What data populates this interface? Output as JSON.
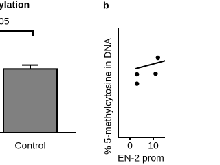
{
  "chart_data": [
    {
      "type": "bar",
      "title": "ylation",
      "annotation": "05",
      "categories": [
        "Control"
      ],
      "values": [
        48
      ],
      "errors": [
        3
      ],
      "color": "#808080",
      "ylim": [
        0,
        100
      ]
    },
    {
      "type": "scatter",
      "panel": "b",
      "ylabel": "% 5-methylcytosine in DNA",
      "xlabel": "EN-2 prom",
      "x": [
        3,
        3,
        12,
        11
      ],
      "values": [
        5.75,
        4.9,
        7.25,
        5.8
      ],
      "color": "#000000",
      "trend": {
        "x": [
          2.4,
          15.3
        ],
        "values": [
          6.25,
          7.0
        ]
      },
      "xlim": [
        -5,
        15
      ],
      "ylim": [
        0,
        10
      ],
      "xticks": [
        0,
        10
      ]
    }
  ]
}
